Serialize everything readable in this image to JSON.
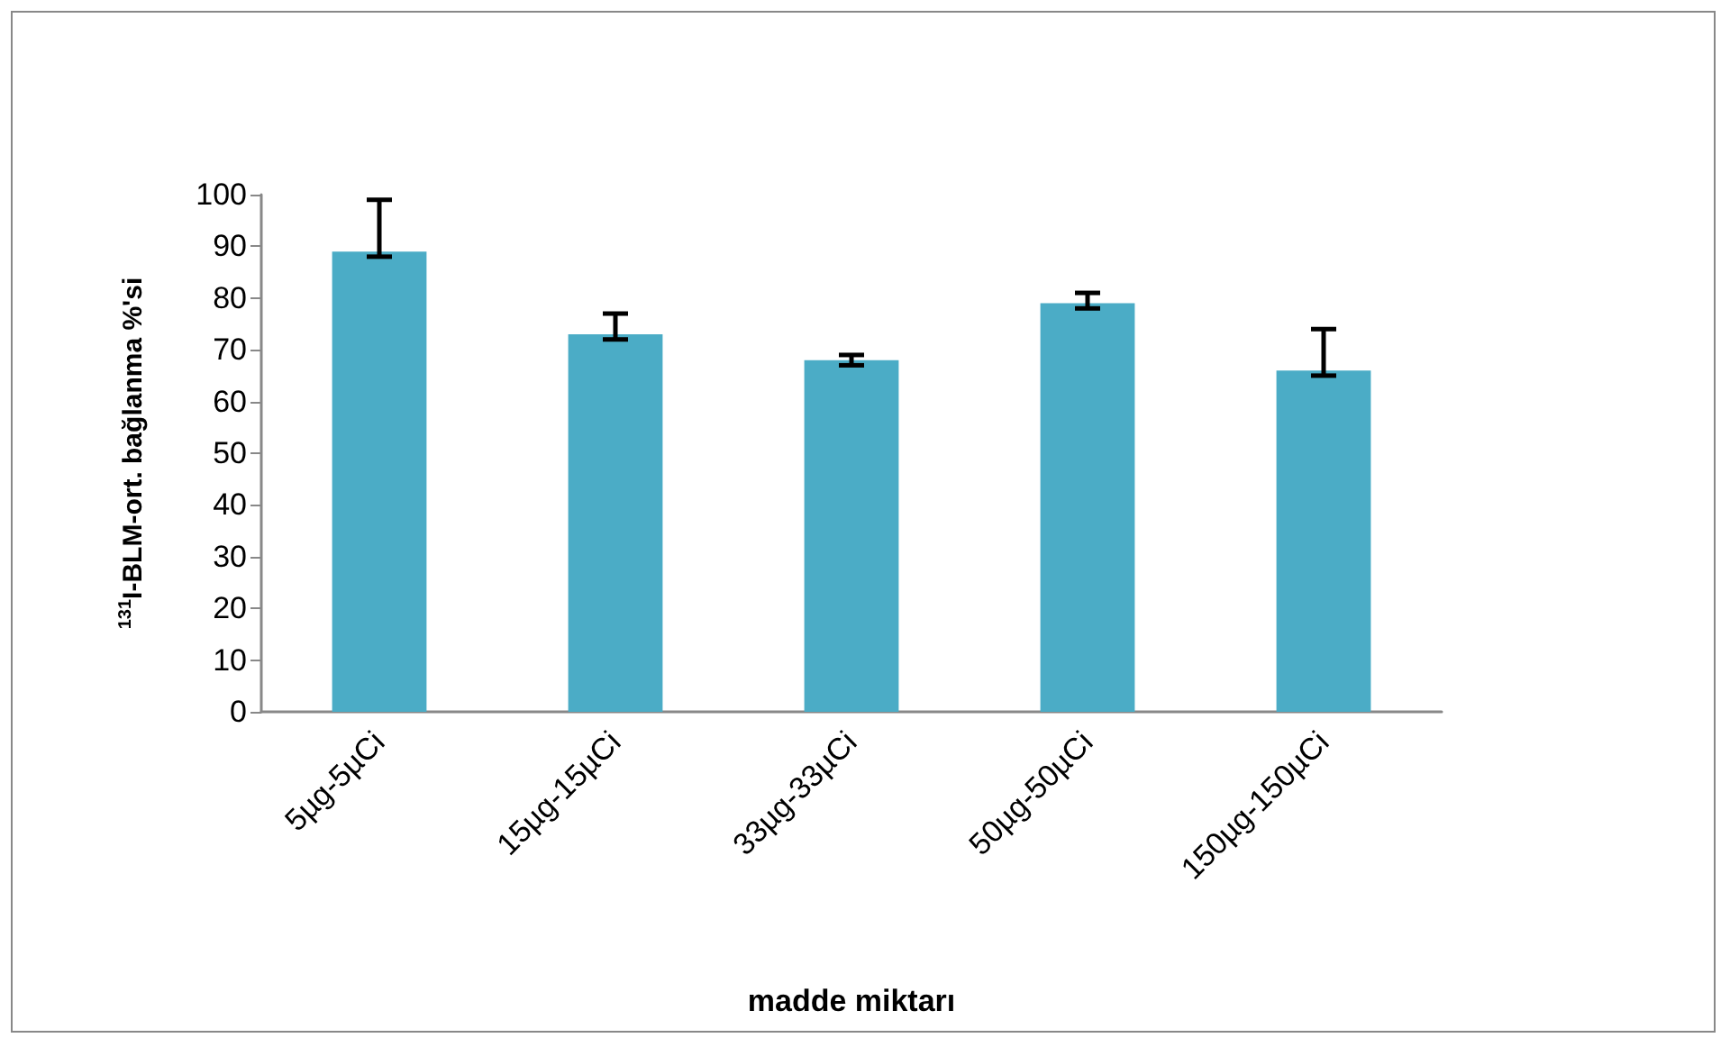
{
  "chart_data": {
    "type": "bar",
    "xlabel": "madde miktarı",
    "ylabel": "$^{131}$I-BLM-ort. bağlanma %'si",
    "categories": [
      "5µg-5µCi",
      "15µg-15µCi",
      "33µg-33µCi",
      "50µg-50µCi",
      "150µg-150µCi"
    ],
    "values": [
      89,
      73,
      68,
      79,
      66
    ],
    "errors": [
      [
        88,
        99
      ],
      [
        72,
        77
      ],
      [
        67,
        69
      ],
      [
        78,
        81
      ],
      [
        65,
        74
      ]
    ],
    "color": "#4bacc6",
    "ylim": [
      0,
      100
    ],
    "yticks": [
      0,
      10,
      20,
      30,
      40,
      50,
      60,
      70,
      80,
      90,
      100
    ],
    "grid": false
  }
}
